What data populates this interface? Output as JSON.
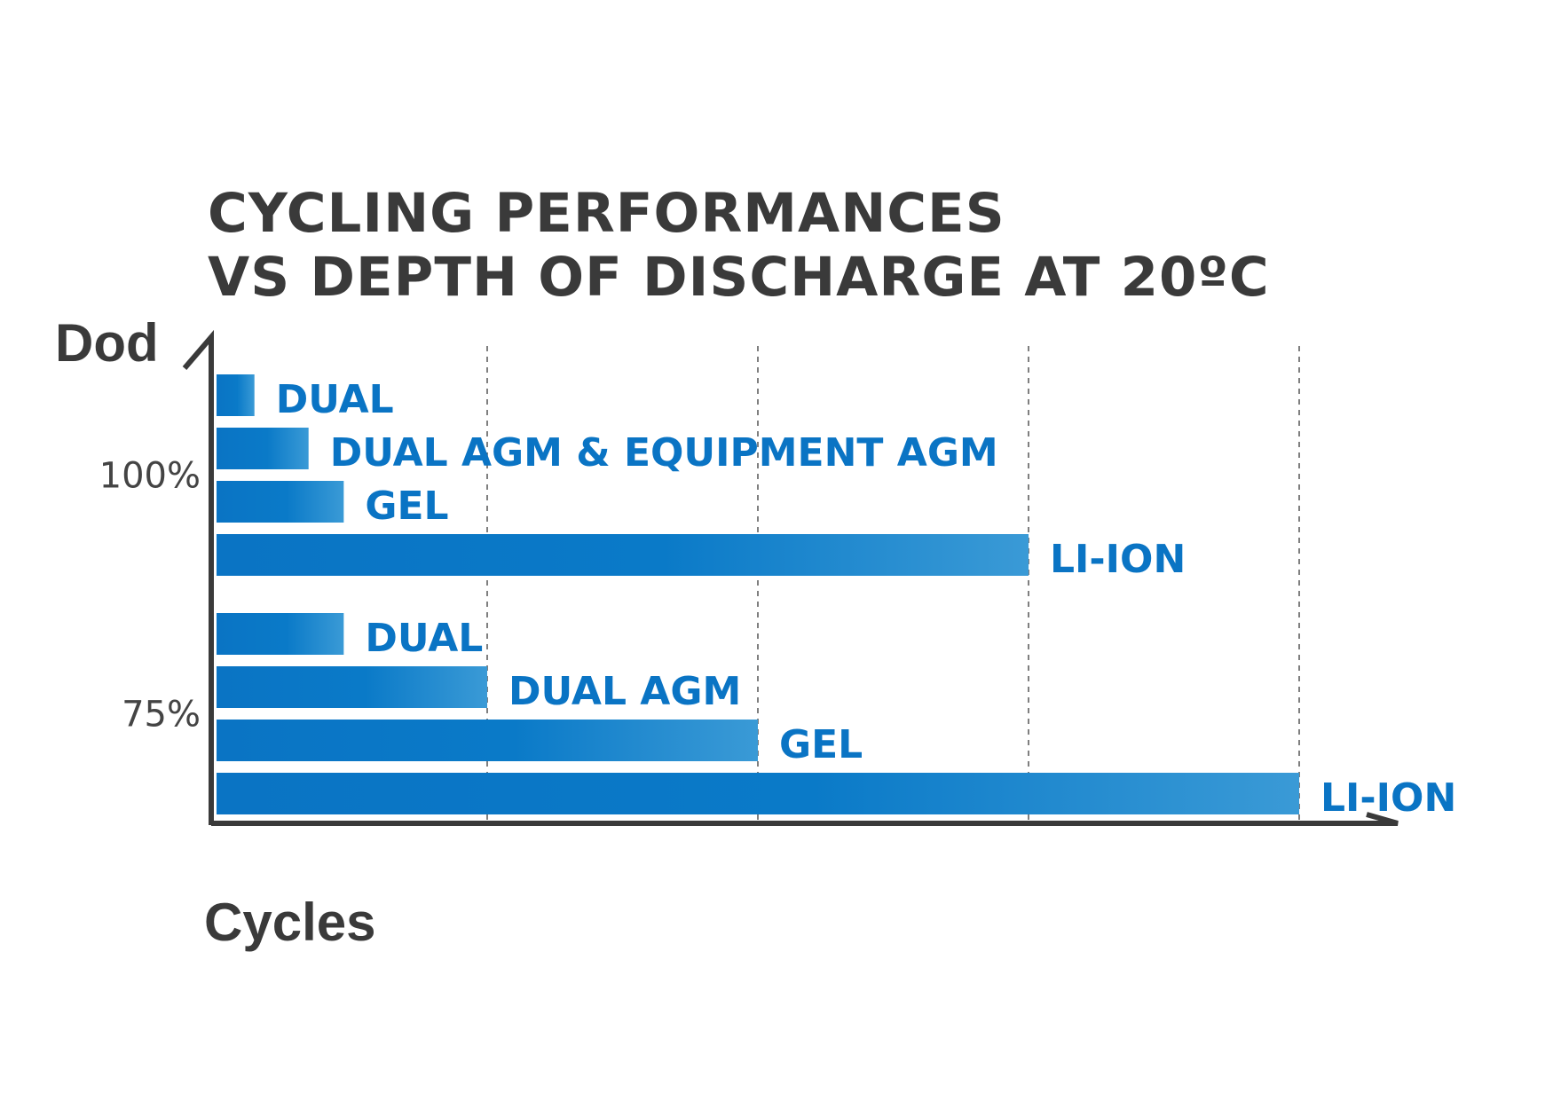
{
  "chart_data": {
    "type": "bar",
    "orientation": "horizontal",
    "title": [
      "CYCLING PERFORMANCES",
      "VS DEPTH OF DISCHARGE AT 20ºC"
    ],
    "ylabel": "Dod",
    "xlabel": "Cycles",
    "xlim": [
      0,
      4
    ],
    "grid": "vertical dashed",
    "groups": [
      {
        "label": "100%",
        "bars": [
          {
            "name": "DUAL",
            "value": 0.14
          },
          {
            "name": "DUAL AGM &  EQUIPMENT AGM",
            "value": 0.34
          },
          {
            "name": "GEL",
            "value": 0.47
          },
          {
            "name": "LI-ION",
            "value": 3.0
          }
        ]
      },
      {
        "label": "75%",
        "bars": [
          {
            "name": "DUAL",
            "value": 0.47
          },
          {
            "name": "DUAL AGM",
            "value": 1.0
          },
          {
            "name": "GEL",
            "value": 2.0
          },
          {
            "name": "LI-ION",
            "value": 4.0
          }
        ]
      }
    ],
    "colors": {
      "bar_start": "#0a74c4",
      "bar_end": "#3a9ad6",
      "label": "#0a74c4",
      "axis": "#3a3a3a"
    }
  }
}
